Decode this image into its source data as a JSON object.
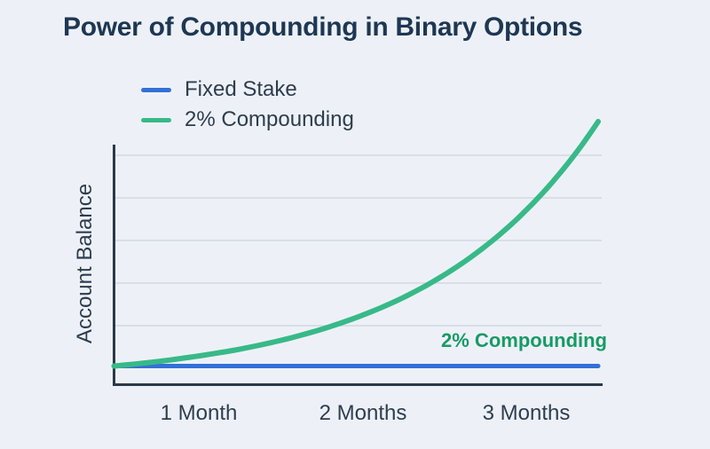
{
  "title": "Power of Compounding in Binary Options",
  "legend": [
    {
      "label": "Fixed Stake",
      "color": "#3470d6"
    },
    {
      "label": "2% Compounding",
      "color": "#38b988"
    }
  ],
  "chart_data": {
    "type": "line",
    "title": "Power of Compounding in Binary Options",
    "xlabel": "",
    "ylabel": "Account Balance",
    "categories": [
      "1 Month",
      "2 Months",
      "3 Months"
    ],
    "x_months": [
      0,
      0.25,
      0.5,
      0.75,
      1.0,
      1.25,
      1.5,
      1.75,
      2.0,
      2.25,
      2.5,
      2.75,
      3.0
    ],
    "series": [
      {
        "name": "Fixed Stake",
        "color": "#3470d6",
        "values": [
          1,
          1,
          1,
          1,
          1,
          1,
          1,
          1,
          1,
          1,
          1,
          1,
          1
        ]
      },
      {
        "name": "2% Compounding",
        "color": "#38b988",
        "values": [
          1.0,
          1.26,
          1.6,
          2.01,
          2.54,
          3.21,
          4.06,
          5.12,
          6.47,
          8.17,
          10.31,
          13.02,
          16.44
        ]
      }
    ],
    "annotation": {
      "text": "2% Compounding",
      "color": "#189a66"
    },
    "y_ticks": [],
    "grid": "horizontal",
    "legend_position": "top-left",
    "axis_color": "#2b3948",
    "gridline_color": "#d9dee7"
  }
}
